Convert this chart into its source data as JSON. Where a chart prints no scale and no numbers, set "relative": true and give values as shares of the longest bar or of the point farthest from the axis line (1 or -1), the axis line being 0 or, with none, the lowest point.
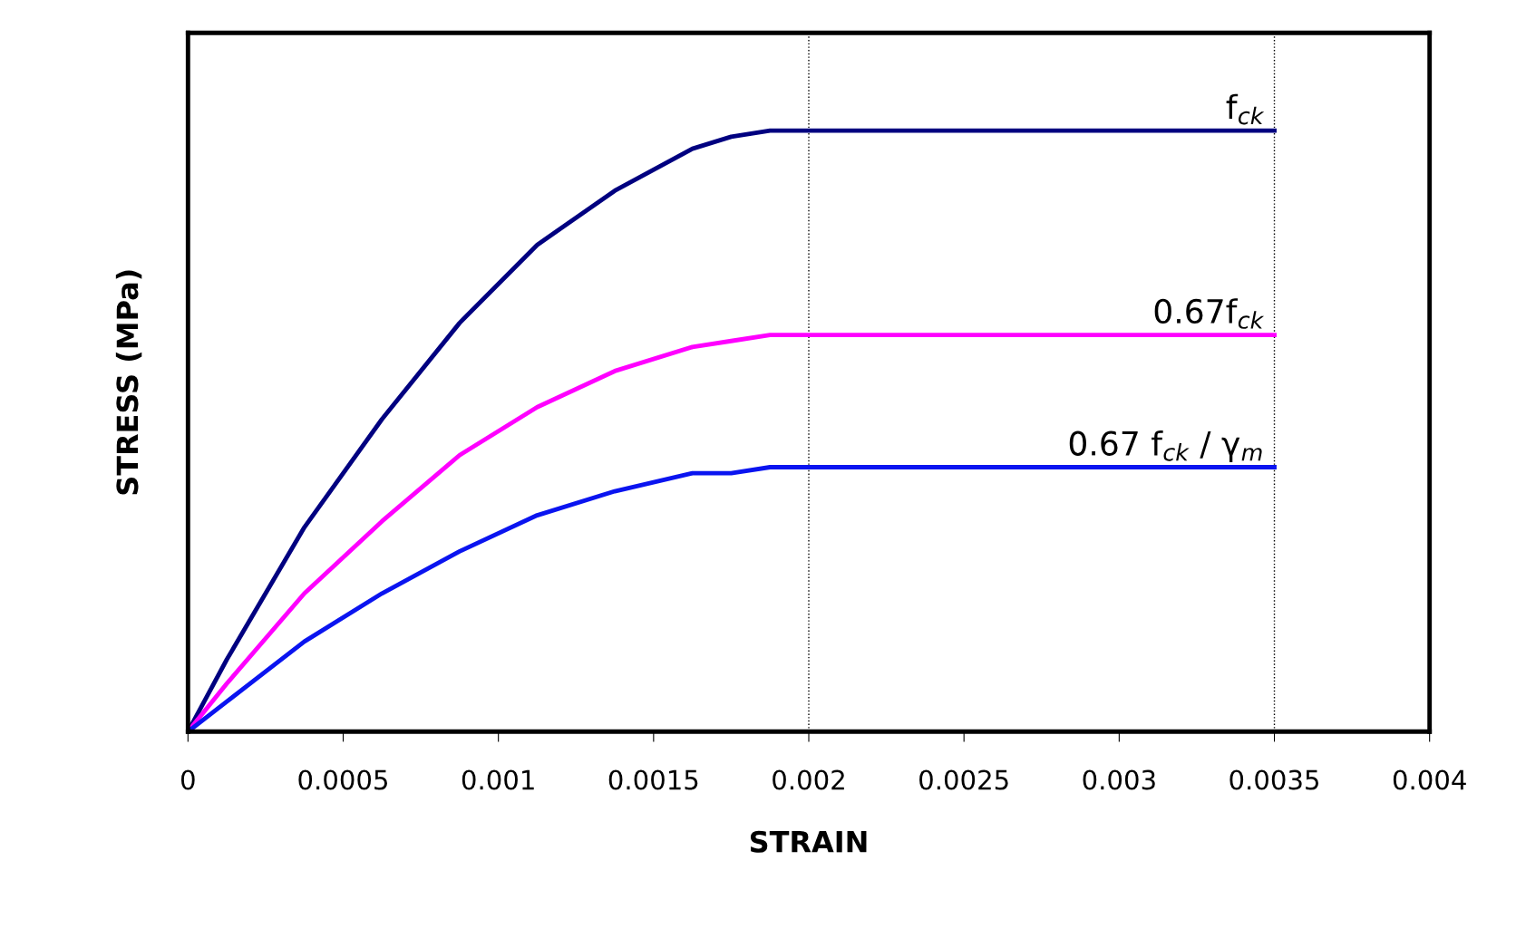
{
  "chart_data": {
    "type": "line",
    "relative": true,
    "xlabel": "STRAIN",
    "ylabel": "STRESS (MPa)",
    "x": [
      0,
      0.000125,
      0.000375,
      0.000625,
      0.000875,
      0.001125,
      0.001375,
      0.001625,
      0.00175,
      0.001875,
      0.002,
      0.0035
    ],
    "series": [
      {
        "name": "f$_{ck}$",
        "color": "#000080",
        "values": [
          0,
          0.12,
          0.34,
          0.52,
          0.68,
          0.81,
          0.9,
          0.97,
          0.99,
          1,
          1,
          1
        ]
      },
      {
        "name": "0.67f$_{ck}$",
        "color": "#ff00ff",
        "values": [
          0,
          0.08,
          0.23,
          0.35,
          0.46,
          0.54,
          0.6,
          0.64,
          0.65,
          0.66,
          0.66,
          0.66
        ]
      },
      {
        "name": "0.67 f$_{ck}$ / γ$_{m}$",
        "color": "#0a14f0",
        "values": [
          0,
          0.05,
          0.15,
          0.23,
          0.3,
          0.36,
          0.4,
          0.43,
          0.43,
          0.44,
          0.44,
          0.44
        ]
      }
    ],
    "xlim": [
      0,
      0.004
    ],
    "xticks": [
      0,
      0.0005,
      0.001,
      0.0015,
      0.002,
      0.0025,
      0.003,
      0.0035,
      0.004
    ],
    "ref_lines": [
      {
        "axis": "x",
        "value": 0.002,
        "color": "#000000",
        "line_style": "dotted"
      },
      {
        "axis": "x",
        "value": 0.0035,
        "color": "#000000",
        "line_style": "dotted"
      }
    ],
    "grid": false,
    "legend": false,
    "marker": "none",
    "line_style": "solid"
  }
}
